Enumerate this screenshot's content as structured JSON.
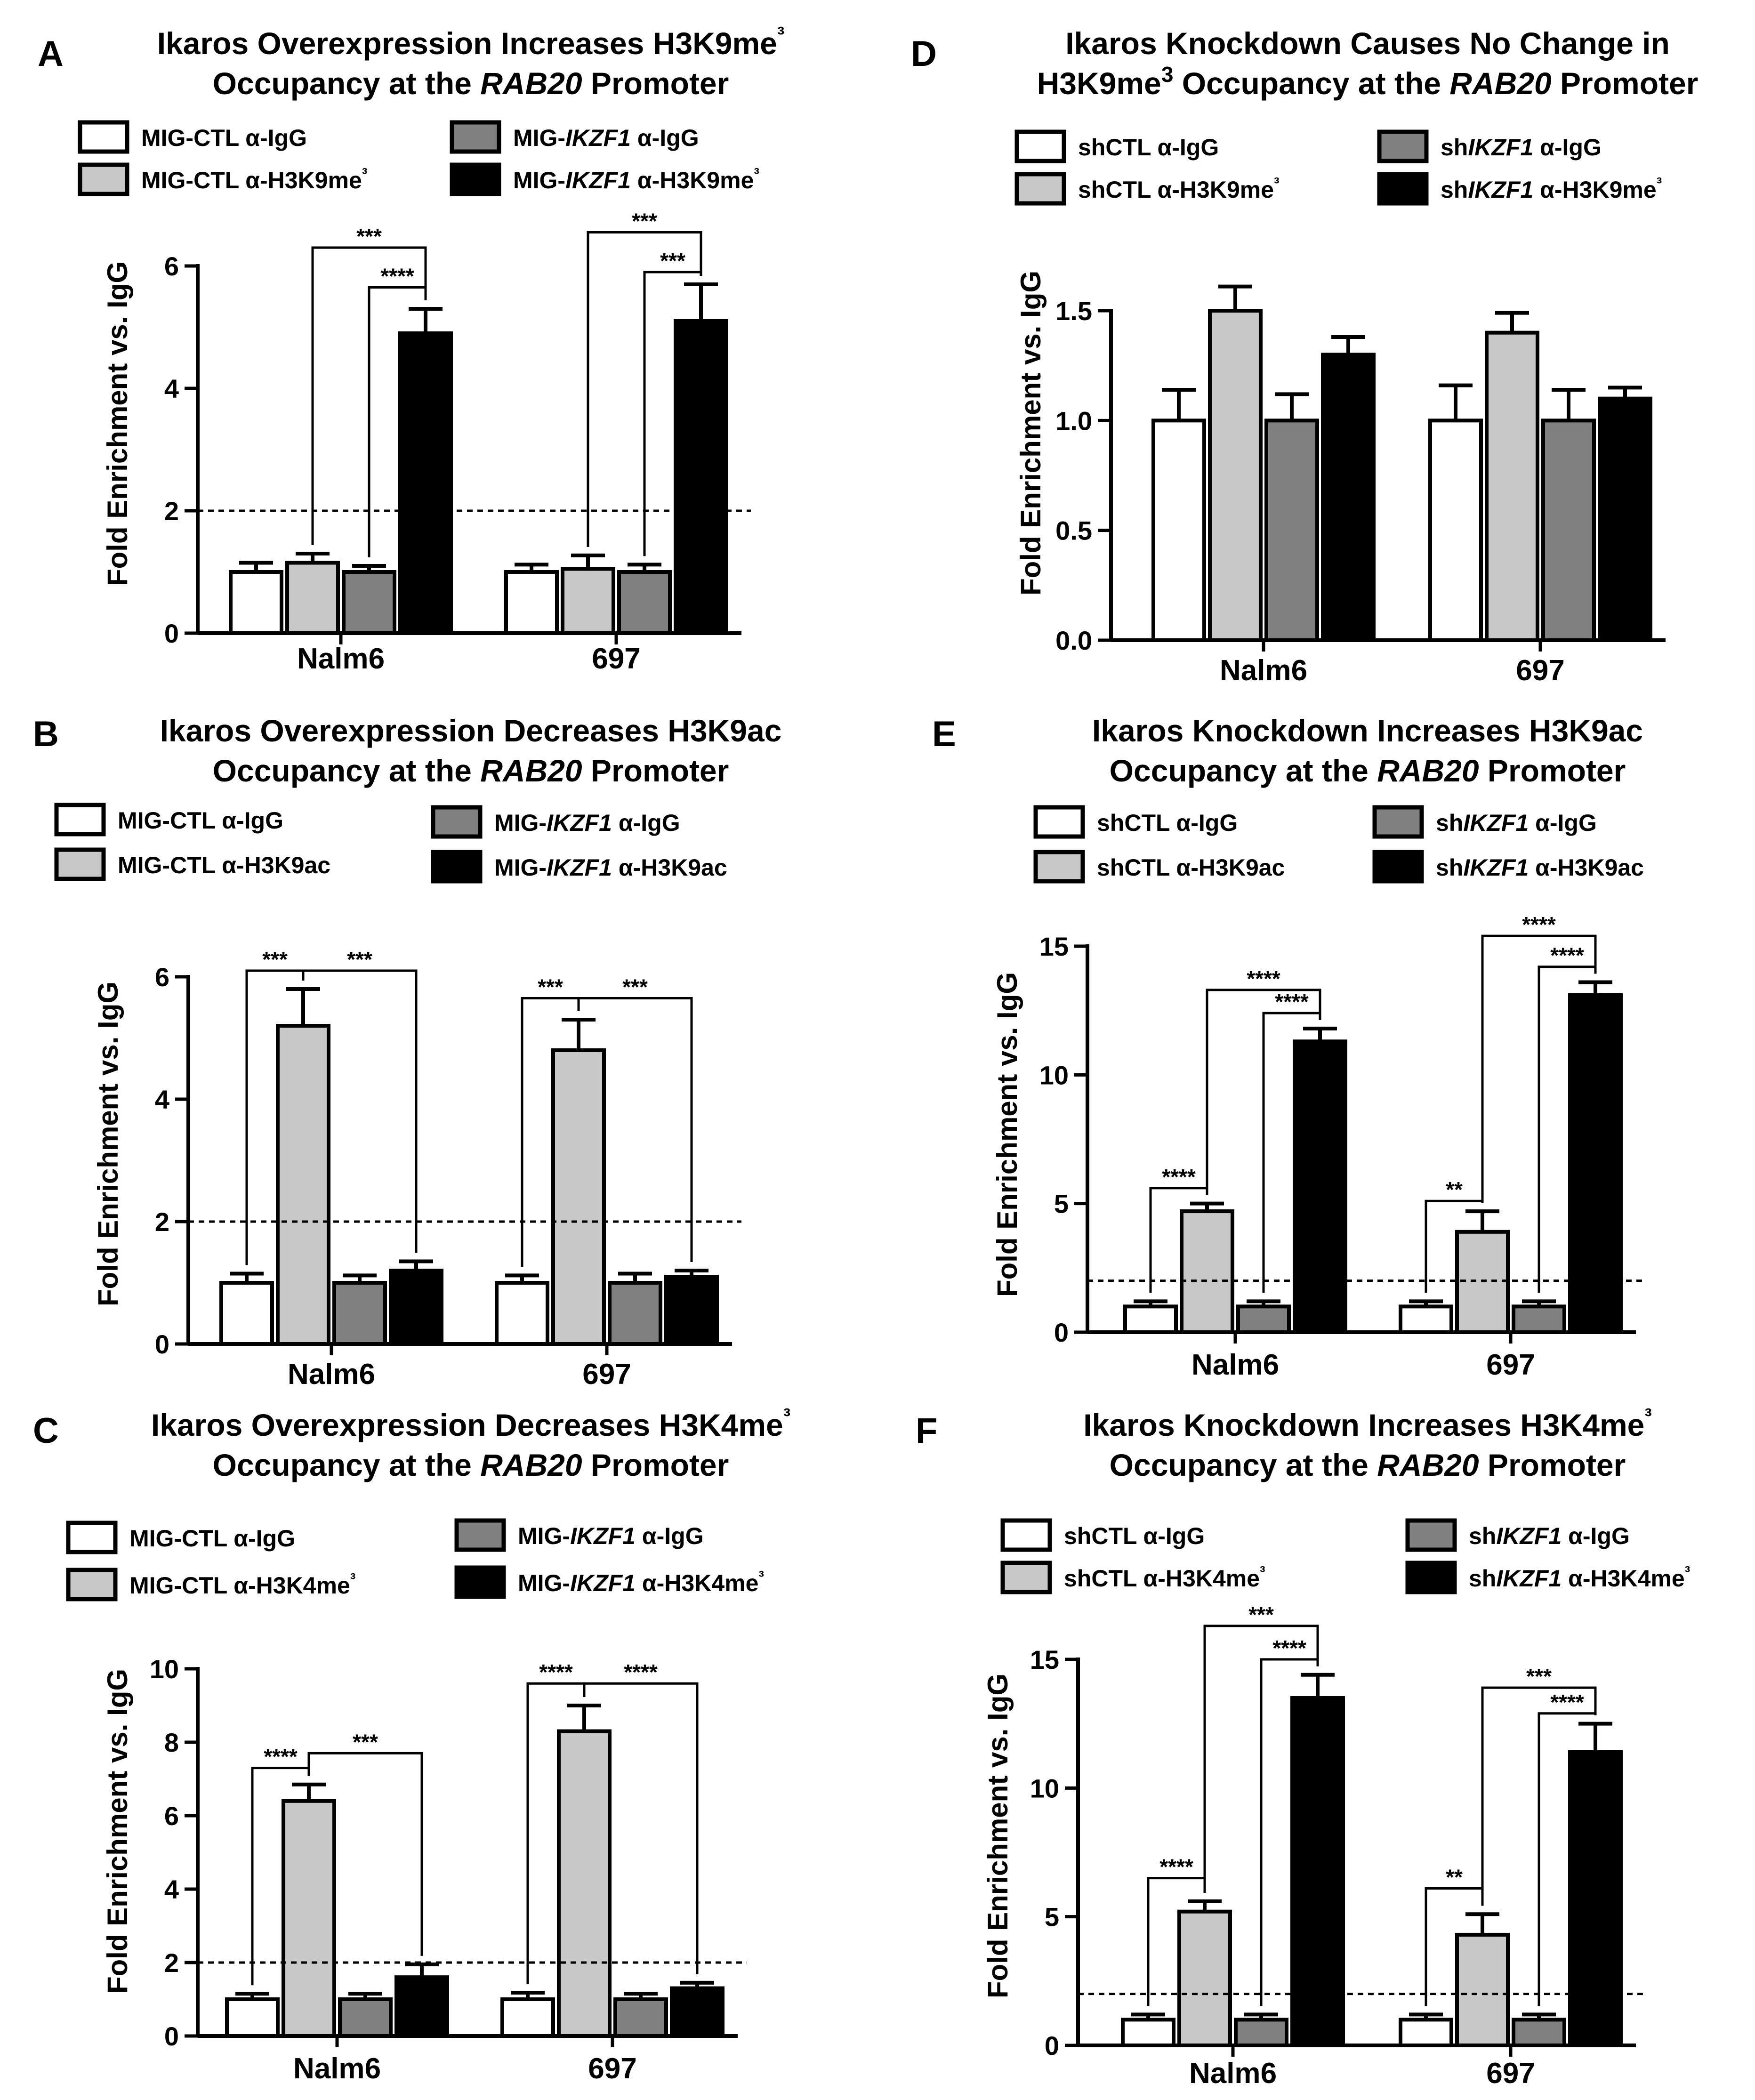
{
  "chart_data": [
    {
      "type": "bar",
      "panel": "A",
      "title_parts": [
        [
          "Ikaros Overexpression Increases H3K9me",
          "³"
        ],
        [
          "Occupancy at the ",
          "RAB20",
          " Promoter"
        ]
      ],
      "ylabel": "Fold Enrichment vs. IgG",
      "ylim": [
        0,
        6
      ],
      "yticks": [
        "0",
        "2",
        "4",
        "6"
      ],
      "ytick_values": [
        0,
        2,
        4,
        6
      ],
      "reference_line": 2,
      "categories": [
        "Nalm6",
        "697"
      ],
      "series": [
        {
          "name": "MIG-CTL α-IgG",
          "name_parts": [
            "MIG-CTL α-IgG"
          ],
          "color": "#ffffff",
          "values": [
            1.0,
            1.0
          ],
          "errors": [
            0.15,
            0.12
          ]
        },
        {
          "name": "MIG-CTL α-H3K9me³",
          "name_parts": [
            "MIG-CTL α-H3K9me³"
          ],
          "color": "#c8c8c8",
          "values": [
            1.15,
            1.05
          ],
          "errors": [
            0.15,
            0.22
          ]
        },
        {
          "name": "MIG-IKZF1 α-IgG",
          "name_parts": [
            "MIG-",
            "IKZF1",
            " α-IgG"
          ],
          "color": "#808080",
          "values": [
            1.0,
            1.0
          ],
          "errors": [
            0.1,
            0.12
          ]
        },
        {
          "name": "MIG-IKZF1 α-H3K9me³",
          "name_parts": [
            "MIG-",
            "IKZF1",
            " α-H3K9me³"
          ],
          "color": "#000000",
          "values": [
            4.9,
            5.1
          ],
          "errors": [
            0.4,
            0.6
          ]
        }
      ],
      "significance": [
        {
          "label": "***",
          "group": 0,
          "from": 1,
          "to": 3,
          "level": 6.3
        },
        {
          "label": "****",
          "group": 0,
          "from": 2,
          "to": 3,
          "level": 5.65
        },
        {
          "label": "***",
          "group": 1,
          "from": 1,
          "to": 3,
          "level": 6.55
        },
        {
          "label": "***",
          "group": 1,
          "from": 2,
          "to": 3,
          "level": 5.9
        }
      ]
    },
    {
      "type": "bar",
      "panel": "B",
      "title_parts": [
        [
          "Ikaros Overexpression Decreases H3K9ac"
        ],
        [
          "Occupancy at the ",
          "RAB20",
          " Promoter"
        ]
      ],
      "ylabel": "Fold Enrichment vs. IgG",
      "ylim": [
        0,
        6
      ],
      "yticks": [
        "0",
        "2",
        "4",
        "6"
      ],
      "ytick_values": [
        0,
        2,
        4,
        6
      ],
      "reference_line": 2,
      "categories": [
        "Nalm6",
        "697"
      ],
      "series": [
        {
          "name": "MIG-CTL α-IgG",
          "name_parts": [
            "MIG-CTL α-IgG"
          ],
          "color": "#ffffff",
          "values": [
            1.0,
            1.0
          ],
          "errors": [
            0.15,
            0.12
          ]
        },
        {
          "name": "MIG-CTL α-H3K9ac",
          "name_parts": [
            "MIG-CTL α-H3K9ac"
          ],
          "color": "#c8c8c8",
          "values": [
            5.2,
            4.8
          ],
          "errors": [
            0.6,
            0.5
          ]
        },
        {
          "name": "MIG-IKZF1 α-IgG",
          "name_parts": [
            "MIG-",
            "IKZF1",
            " α-IgG"
          ],
          "color": "#808080",
          "values": [
            1.0,
            1.0
          ],
          "errors": [
            0.12,
            0.15
          ]
        },
        {
          "name": "MIG-IKZF1 α-H3K9ac",
          "name_parts": [
            "MIG-",
            "IKZF1",
            " α-H3K9ac"
          ],
          "color": "#000000",
          "values": [
            1.2,
            1.1
          ],
          "errors": [
            0.15,
            0.1
          ]
        }
      ],
      "significance": [
        {
          "label": "***",
          "group": 0,
          "from": 0,
          "to": 1,
          "level": 6.1
        },
        {
          "label": "***",
          "group": 0,
          "from": 1,
          "to": 3,
          "level": 6.1
        },
        {
          "label": "***",
          "group": 1,
          "from": 0,
          "to": 1,
          "level": 5.65
        },
        {
          "label": "***",
          "group": 1,
          "from": 1,
          "to": 3,
          "level": 5.65
        }
      ]
    },
    {
      "type": "bar",
      "panel": "C",
      "title_parts": [
        [
          "Ikaros Overexpression Decreases H3K4me",
          "³"
        ],
        [
          "Occupancy at the ",
          "RAB20",
          " Promoter"
        ]
      ],
      "ylabel": "Fold Enrichment vs. IgG",
      "ylim": [
        0,
        10
      ],
      "yticks": [
        "0",
        "2",
        "4",
        "6",
        "8",
        "10"
      ],
      "ytick_values": [
        0,
        2,
        4,
        6,
        8,
        10
      ],
      "reference_line": 2,
      "categories": [
        "Nalm6",
        "697"
      ],
      "series": [
        {
          "name": "MIG-CTL α-IgG",
          "name_parts": [
            "MIG-CTL α-IgG"
          ],
          "color": "#ffffff",
          "values": [
            1.0,
            1.0
          ],
          "errors": [
            0.15,
            0.18
          ]
        },
        {
          "name": "MIG-CTL α-H3K4me³",
          "name_parts": [
            "MIG-CTL α-H3K4me³"
          ],
          "color": "#c8c8c8",
          "values": [
            6.4,
            8.3
          ],
          "errors": [
            0.45,
            0.7
          ]
        },
        {
          "name": "MIG-IKZF1 α-IgG",
          "name_parts": [
            "MIG-",
            "IKZF1",
            " α-IgG"
          ],
          "color": "#808080",
          "values": [
            1.0,
            1.0
          ],
          "errors": [
            0.15,
            0.15
          ]
        },
        {
          "name": "MIG-IKZF1 α-H3K4me³",
          "name_parts": [
            "MIG-",
            "IKZF1",
            " α-H3K4me³"
          ],
          "color": "#000000",
          "values": [
            1.6,
            1.3
          ],
          "errors": [
            0.35,
            0.15
          ]
        }
      ],
      "significance": [
        {
          "label": "****",
          "group": 0,
          "from": 0,
          "to": 1,
          "level": 7.3
        },
        {
          "label": "***",
          "group": 0,
          "from": 1,
          "to": 3,
          "level": 7.7
        },
        {
          "label": "****",
          "group": 1,
          "from": 0,
          "to": 1,
          "level": 9.6
        },
        {
          "label": "****",
          "group": 1,
          "from": 1,
          "to": 3,
          "level": 9.6
        }
      ]
    },
    {
      "type": "bar",
      "panel": "D",
      "title_parts": [
        [
          "Ikaros Knockdown Causes No Change in"
        ],
        [
          "H3K9me",
          "3",
          " Occupancy at the ",
          "RAB20",
          " Promoter"
        ]
      ],
      "ylabel": "Fold Enrichment vs. IgG",
      "ylim": [
        0,
        1.5
      ],
      "yticks": [
        "0.0",
        "0.5",
        "1.0",
        "1.5"
      ],
      "ytick_values": [
        0,
        0.5,
        1.0,
        1.5
      ],
      "reference_line": null,
      "categories": [
        "Nalm6",
        "697"
      ],
      "series": [
        {
          "name": "shCTL α-IgG",
          "name_parts": [
            "shCTL α-IgG"
          ],
          "color": "#ffffff",
          "values": [
            1.0,
            1.0
          ],
          "errors": [
            0.14,
            0.16
          ]
        },
        {
          "name": "shCTL α-H3K9me³",
          "name_parts": [
            "shCTL α-H3K9me³"
          ],
          "color": "#c8c8c8",
          "values": [
            1.5,
            1.4
          ],
          "errors": [
            0.11,
            0.09
          ]
        },
        {
          "name": "shIKZF1 α-IgG",
          "name_parts": [
            "sh",
            "IKZF1",
            " α-IgG"
          ],
          "color": "#808080",
          "values": [
            1.0,
            1.0
          ],
          "errors": [
            0.12,
            0.14
          ]
        },
        {
          "name": "shIKZF1 α-H3K9me³",
          "name_parts": [
            "sh",
            "IKZF1",
            " α-H3K9me³"
          ],
          "color": "#000000",
          "values": [
            1.3,
            1.1
          ],
          "errors": [
            0.08,
            0.05
          ]
        }
      ],
      "significance": []
    },
    {
      "type": "bar",
      "panel": "E",
      "title_parts": [
        [
          "Ikaros Knockdown Increases H3K9ac"
        ],
        [
          "Occupancy at the ",
          "RAB20",
          " Promoter"
        ]
      ],
      "ylabel": "Fold Enrichment vs. IgG",
      "ylim": [
        0,
        15
      ],
      "yticks": [
        "0",
        "5",
        "10",
        "15"
      ],
      "ytick_values": [
        0,
        5,
        10,
        15
      ],
      "reference_line": 2,
      "categories": [
        "Nalm6",
        "697"
      ],
      "series": [
        {
          "name": "shCTL α-IgG",
          "name_parts": [
            "shCTL α-IgG"
          ],
          "color": "#ffffff",
          "values": [
            1.0,
            1.0
          ],
          "errors": [
            0.2,
            0.2
          ]
        },
        {
          "name": "shCTL α-H3K9ac",
          "name_parts": [
            "shCTL α-H3K9ac"
          ],
          "color": "#c8c8c8",
          "values": [
            4.7,
            3.9
          ],
          "errors": [
            0.3,
            0.8
          ]
        },
        {
          "name": "shIKZF1 α-IgG",
          "name_parts": [
            "sh",
            "IKZF1",
            " α-IgG"
          ],
          "color": "#808080",
          "values": [
            1.0,
            1.0
          ],
          "errors": [
            0.2,
            0.2
          ]
        },
        {
          "name": "shIKZF1 α-H3K9ac",
          "name_parts": [
            "sh",
            "IKZF1",
            " α-H3K9ac"
          ],
          "color": "#000000",
          "values": [
            11.3,
            13.1
          ],
          "errors": [
            0.5,
            0.5
          ]
        }
      ],
      "significance": [
        {
          "label": "****",
          "group": 0,
          "from": 0,
          "to": 1,
          "level": 5.6
        },
        {
          "label": "****",
          "group": 0,
          "from": 1,
          "to": 3,
          "level": 13.3
        },
        {
          "label": "****",
          "group": 0,
          "from": 2,
          "to": 3,
          "level": 12.4
        },
        {
          "label": "**",
          "group": 1,
          "from": 0,
          "to": 1,
          "level": 5.1
        },
        {
          "label": "****",
          "group": 1,
          "from": 1,
          "to": 3,
          "level": 15.4
        },
        {
          "label": "****",
          "group": 1,
          "from": 2,
          "to": 3,
          "level": 14.2
        }
      ]
    },
    {
      "type": "bar",
      "panel": "F",
      "title_parts": [
        [
          "Ikaros Knockdown Increases H3K4me",
          "³"
        ],
        [
          "Occupancy at the ",
          "RAB20",
          " Promoter"
        ]
      ],
      "ylabel": "Fold Enrichment vs. IgG",
      "ylim": [
        0,
        15
      ],
      "yticks": [
        "0",
        "5",
        "10",
        "15"
      ],
      "ytick_values": [
        0,
        5,
        10,
        15
      ],
      "reference_line": 2,
      "categories": [
        "Nalm6",
        "697"
      ],
      "series": [
        {
          "name": "shCTL α-IgG",
          "name_parts": [
            "shCTL α-IgG"
          ],
          "color": "#ffffff",
          "values": [
            1.0,
            1.0
          ],
          "errors": [
            0.2,
            0.2
          ]
        },
        {
          "name": "shCTL α-H3K4me³",
          "name_parts": [
            "shCTL α-H3K4me³"
          ],
          "color": "#c8c8c8",
          "values": [
            5.2,
            4.3
          ],
          "errors": [
            0.4,
            0.8
          ]
        },
        {
          "name": "shIKZF1 α-IgG",
          "name_parts": [
            "sh",
            "IKZF1",
            " α-IgG"
          ],
          "color": "#808080",
          "values": [
            1.0,
            1.0
          ],
          "errors": [
            0.2,
            0.2
          ]
        },
        {
          "name": "shIKZF1 α-H3K4me³",
          "name_parts": [
            "sh",
            "IKZF1",
            " α-H3K4me³"
          ],
          "color": "#000000",
          "values": [
            13.5,
            11.4
          ],
          "errors": [
            0.9,
            1.1
          ]
        }
      ],
      "significance": [
        {
          "label": "****",
          "group": 0,
          "from": 0,
          "to": 1,
          "level": 6.5
        },
        {
          "label": "***",
          "group": 0,
          "from": 1,
          "to": 3,
          "level": 16.3
        },
        {
          "label": "****",
          "group": 0,
          "from": 2,
          "to": 3,
          "level": 15.0
        },
        {
          "label": "**",
          "group": 1,
          "from": 0,
          "to": 1,
          "level": 6.1
        },
        {
          "label": "***",
          "group": 1,
          "from": 1,
          "to": 3,
          "level": 13.9
        },
        {
          "label": "****",
          "group": 1,
          "from": 2,
          "to": 3,
          "level": 12.9
        }
      ]
    }
  ]
}
